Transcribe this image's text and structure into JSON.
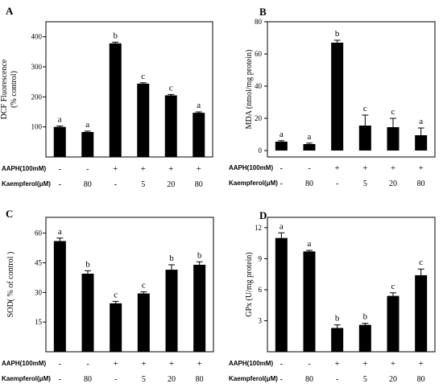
{
  "chart_data": [
    {
      "panel": "A",
      "type": "bar",
      "ylabel": "DCF Fluorescence\n(% control)",
      "ylim": [
        0,
        450
      ],
      "yticks": [
        100,
        200,
        300,
        400
      ],
      "values": [
        100,
        83,
        378,
        244,
        205,
        147
      ],
      "errors": [
        3,
        3,
        4,
        3,
        3,
        3
      ],
      "letters": [
        "a",
        "a",
        "b",
        "c",
        "c",
        "a"
      ],
      "grid": false
    },
    {
      "panel": "B",
      "type": "bar",
      "ylabel": "MDA (nmol/mg protein)",
      "ylim": [
        -4,
        80
      ],
      "yticks": [
        0,
        20,
        40,
        60,
        80
      ],
      "values": [
        5.5,
        4,
        67,
        15.5,
        14.5,
        9.5
      ],
      "errors": [
        0.6,
        0.6,
        1.5,
        6.5,
        5.5,
        4.5
      ],
      "letters": [
        "a",
        "a",
        "b",
        "c",
        "c",
        "a"
      ],
      "grid": false
    },
    {
      "panel": "C",
      "type": "bar",
      "ylabel": "SOD( % of control )",
      "ylim": [
        0,
        68
      ],
      "yticks": [
        15,
        30,
        45,
        60
      ],
      "values": [
        56,
        39.5,
        24.5,
        29.5,
        41.5,
        44
      ],
      "errors": [
        1.5,
        1.5,
        1,
        0.8,
        2.5,
        1.5
      ],
      "letters": [
        "a",
        "b",
        "c",
        "c",
        "b",
        "b"
      ],
      "grid": false
    },
    {
      "panel": "D",
      "type": "bar",
      "ylabel": "GPx (U/mg protein)",
      "ylim": [
        0,
        13
      ],
      "yticks": [
        3,
        6,
        9,
        12
      ],
      "values": [
        11,
        9.7,
        2.3,
        2.6,
        5.4,
        7.4
      ],
      "errors": [
        0.5,
        0.1,
        0.3,
        0.15,
        0.3,
        0.6
      ],
      "letters": [
        "a",
        "a",
        "b",
        "b",
        "c",
        "c"
      ],
      "grid": false
    }
  ],
  "treatments": {
    "row1_label": "AAPH(100mM)",
    "row1_values": [
      "-",
      "-",
      "+",
      "+",
      "+",
      "+"
    ],
    "row2_label": "Kaempferol(μM)",
    "row2_values": [
      "-",
      "80",
      "-",
      "5",
      "20",
      "80"
    ]
  }
}
